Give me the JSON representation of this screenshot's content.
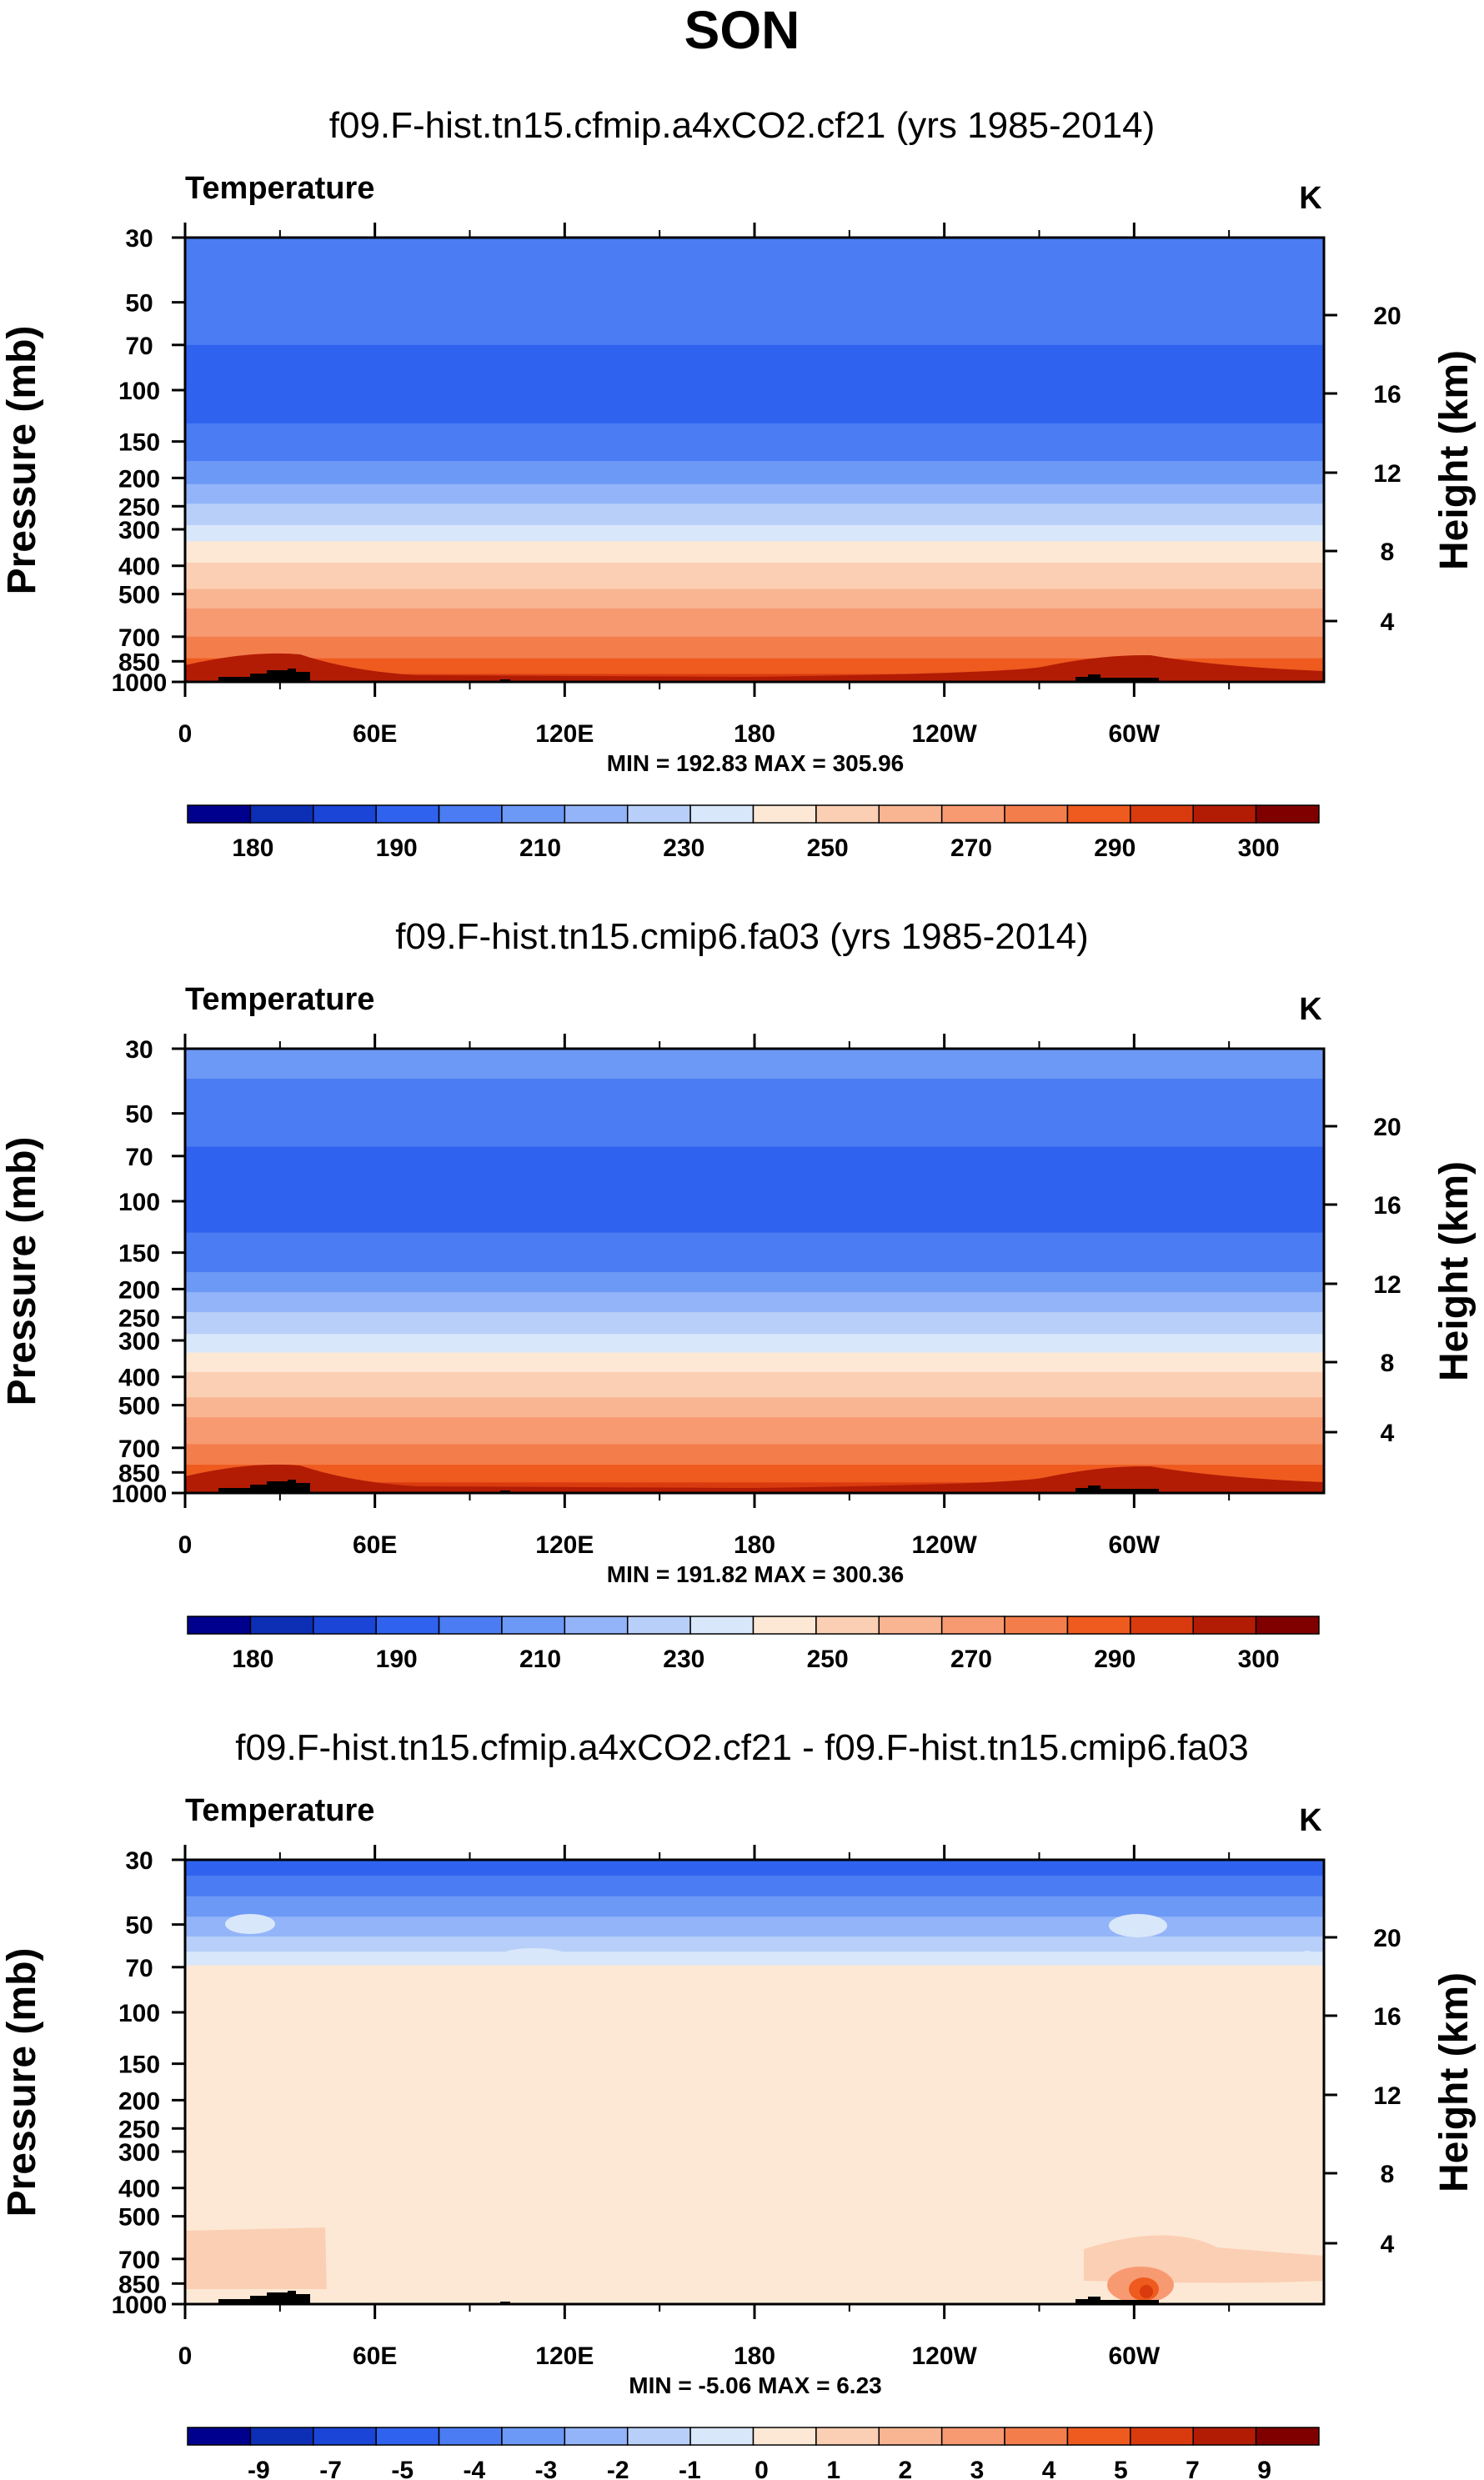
{
  "figure_title": "SON",
  "chart_data": [
    {
      "type": "heatmap",
      "title": "f09.F-hist.tn15.cfmip.a4xCO2.cf21 (yrs 1985-2014)",
      "variable": "Temperature",
      "units": "K",
      "xlabel": "",
      "ylabel": "Pressure (mb)",
      "ylabel_right": "Height (km)",
      "x_ticks": [
        "0",
        "60E",
        "120E",
        "180",
        "120W",
        "60W"
      ],
      "y_ticks": [
        "30",
        "50",
        "70",
        "100",
        "150",
        "200",
        "250",
        "300",
        "400",
        "500",
        "700",
        "850",
        "1000"
      ],
      "y_ticks_right": [
        "20",
        "16",
        "12",
        "8",
        "4"
      ],
      "min_max": "MIN = 192.83   MAX = 305.96",
      "colorbar_labels": [
        "180",
        "190",
        "210",
        "230",
        "250",
        "270",
        "290",
        "300"
      ],
      "ylim": [
        1000,
        30
      ],
      "bands": [
        {
          "p": 30,
          "c": "#4c7cf3"
        },
        {
          "p": 70,
          "c": "#2f62ee"
        },
        {
          "p": 130,
          "c": "#4c7cf3"
        },
        {
          "p": 175,
          "c": "#6d99f6"
        },
        {
          "p": 210,
          "c": "#93b4f8"
        },
        {
          "p": 245,
          "c": "#b8cff9"
        },
        {
          "p": 290,
          "c": "#d9e7fb"
        },
        {
          "p": 330,
          "c": "#fde8d5"
        },
        {
          "p": 390,
          "c": "#fbcfb3"
        },
        {
          "p": 480,
          "c": "#f9b592"
        },
        {
          "p": 560,
          "c": "#f79a72"
        },
        {
          "p": 700,
          "c": "#f37e4c"
        },
        {
          "p": 830,
          "c": "#ef5a1f"
        },
        {
          "p": 940,
          "c": "#d93b0f"
        }
      ]
    },
    {
      "type": "heatmap",
      "title": "f09.F-hist.tn15.cmip6.fa03 (yrs 1985-2014)",
      "variable": "Temperature",
      "units": "K",
      "xlabel": "",
      "ylabel": "Pressure (mb)",
      "ylabel_right": "Height (km)",
      "x_ticks": [
        "0",
        "60E",
        "120E",
        "180",
        "120W",
        "60W"
      ],
      "y_ticks": [
        "30",
        "50",
        "70",
        "100",
        "150",
        "200",
        "250",
        "300",
        "400",
        "500",
        "700",
        "850",
        "1000"
      ],
      "y_ticks_right": [
        "20",
        "16",
        "12",
        "8",
        "4"
      ],
      "min_max": "MIN = 191.82   MAX = 300.36",
      "colorbar_labels": [
        "180",
        "190",
        "210",
        "230",
        "250",
        "270",
        "290",
        "300"
      ],
      "ylim": [
        1000,
        30
      ],
      "bands": [
        {
          "p": 30,
          "c": "#6d99f6"
        },
        {
          "p": 38,
          "c": "#4c7cf3"
        },
        {
          "p": 65,
          "c": "#2f62ee"
        },
        {
          "p": 128,
          "c": "#4c7cf3"
        },
        {
          "p": 175,
          "c": "#6d99f6"
        },
        {
          "p": 205,
          "c": "#93b4f8"
        },
        {
          "p": 240,
          "c": "#b8cff9"
        },
        {
          "p": 285,
          "c": "#d9e7fb"
        },
        {
          "p": 330,
          "c": "#fde8d5"
        },
        {
          "p": 385,
          "c": "#fbcfb3"
        },
        {
          "p": 470,
          "c": "#f9b592"
        },
        {
          "p": 550,
          "c": "#f79a72"
        },
        {
          "p": 680,
          "c": "#f37e4c"
        },
        {
          "p": 800,
          "c": "#ef5a1f"
        },
        {
          "p": 920,
          "c": "#d93b0f"
        }
      ]
    },
    {
      "type": "heatmap",
      "title": "f09.F-hist.tn15.cfmip.a4xCO2.cf21 - f09.F-hist.tn15.cmip6.fa03",
      "variable": "Temperature",
      "units": "K",
      "xlabel": "",
      "ylabel": "Pressure (mb)",
      "ylabel_right": "Height (km)",
      "x_ticks": [
        "0",
        "60E",
        "120E",
        "180",
        "120W",
        "60W"
      ],
      "y_ticks": [
        "30",
        "50",
        "70",
        "100",
        "150",
        "200",
        "250",
        "300",
        "400",
        "500",
        "700",
        "850",
        "1000"
      ],
      "y_ticks_right": [
        "20",
        "16",
        "12",
        "8",
        "4"
      ],
      "min_max": "MIN = -5.06   MAX = 6.23",
      "colorbar_labels": [
        "-9",
        "-7",
        "-5",
        "-4",
        "-3",
        "-2",
        "-1",
        "0",
        "1",
        "2",
        "3",
        "4",
        "5",
        "7",
        "9"
      ],
      "ylim": [
        1000,
        30
      ],
      "bands": [
        {
          "p": 30,
          "c": "#2f62ee"
        },
        {
          "p": 34,
          "c": "#4c7cf3"
        },
        {
          "p": 40,
          "c": "#6d99f6"
        },
        {
          "p": 47,
          "c": "#93b4f8"
        },
        {
          "p": 55,
          "c": "#b8cff9"
        },
        {
          "p": 62,
          "c": "#d9e7fb"
        },
        {
          "p": 69,
          "c": "#fde8d5"
        }
      ]
    }
  ],
  "colors": {
    "frame": "#000000",
    "topography": "#000000",
    "colorbar": [
      "#00008f",
      "#0d2fb5",
      "#1a45d7",
      "#2f62ee",
      "#4c7cf3",
      "#6d99f6",
      "#93b4f8",
      "#b8cff9",
      "#d9e7fb",
      "#fde8d5",
      "#fbcfb3",
      "#f9b592",
      "#f79a72",
      "#f37e4c",
      "#ef5a1f",
      "#d93b0f",
      "#b21c05",
      "#800000"
    ]
  }
}
